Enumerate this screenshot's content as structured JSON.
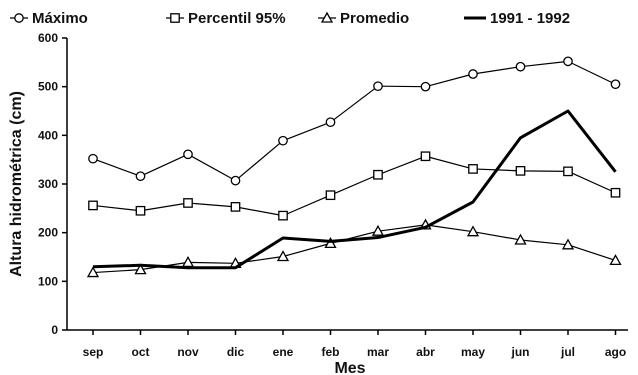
{
  "chart_data": {
    "type": "line",
    "title": "",
    "xlabel": "Mes",
    "ylabel": "Altura hidrométrica (cm)",
    "categories": [
      "sep",
      "oct",
      "nov",
      "dic",
      "ene",
      "feb",
      "mar",
      "abr",
      "may",
      "jun",
      "jul",
      "ago"
    ],
    "ylim": [
      0,
      600
    ],
    "yticks": [
      0,
      100,
      200,
      300,
      400,
      500,
      600
    ],
    "grid": false,
    "legend_position": "top",
    "series": [
      {
        "name": "Máximo",
        "marker": "circle",
        "values": [
          352,
          316,
          361,
          307,
          389,
          427,
          501,
          500,
          526,
          541,
          552,
          505
        ]
      },
      {
        "name": "Percentil 95%",
        "marker": "square",
        "values": [
          256,
          245,
          261,
          253,
          235,
          277,
          319,
          357,
          331,
          327,
          326,
          282
        ]
      },
      {
        "name": "Promedio",
        "marker": "triangle",
        "values": [
          118,
          124,
          139,
          137,
          151,
          178,
          203,
          216,
          202,
          185,
          175,
          143
        ]
      },
      {
        "name": "1991 - 1992",
        "marker": "none",
        "values": [
          130,
          133,
          128,
          128,
          189,
          182,
          190,
          211,
          263,
          395,
          450,
          325
        ]
      }
    ],
    "colors": {
      "line": "#000000",
      "marker_fill": "#ffffff",
      "text": "#111111"
    }
  }
}
